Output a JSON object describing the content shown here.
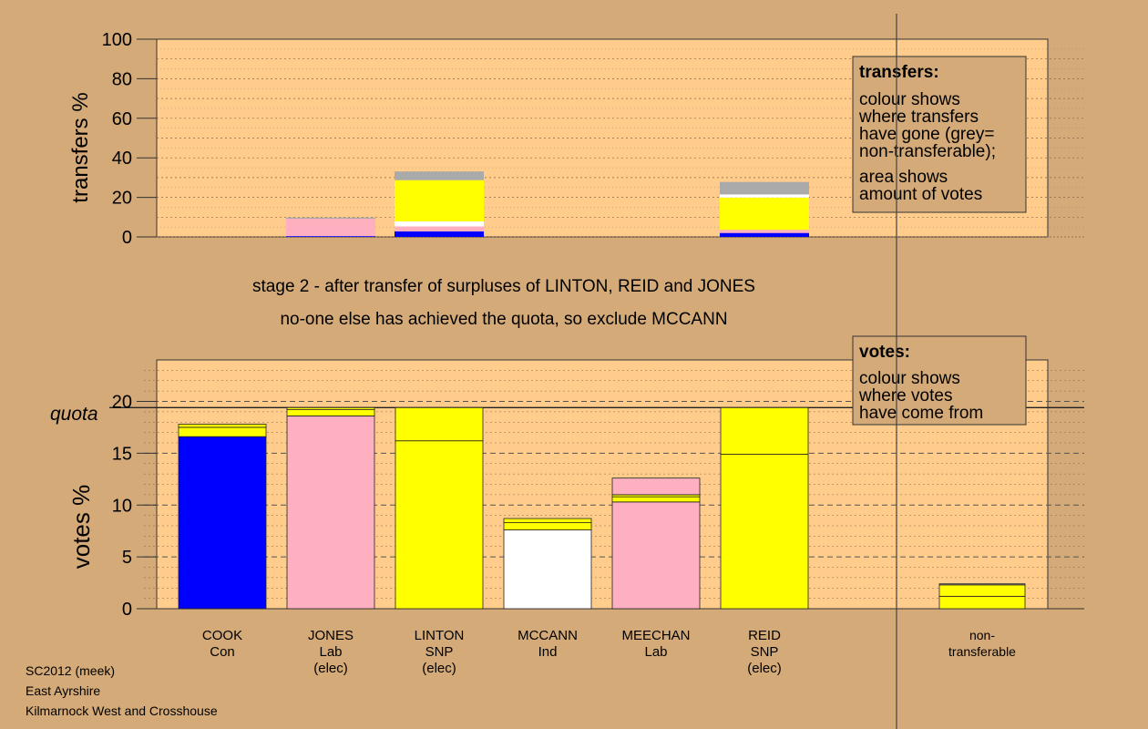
{
  "colors": {
    "background": "#d4aa78",
    "plot_bg": "#ffcc8c",
    "Con": "#0000ff",
    "Lab": "#ffb0c0",
    "SNP": "#ffff00",
    "Ind": "#ffffff",
    "grey": "#aaaaaa"
  },
  "top_panel": {
    "ylabel": "transfers %",
    "yticks": [
      "0",
      "20",
      "40",
      "60",
      "80",
      "100"
    ]
  },
  "transfers_box": {
    "title": "transfers:",
    "lines": [
      "colour shows",
      "where transfers",
      "have gone (grey=",
      "non-transferable);"
    ],
    "lines2": [
      "area shows",
      "amount of votes"
    ]
  },
  "captions": {
    "line1": "stage 2 - after transfer of surpluses of LINTON, REID and JONES",
    "line2": "no-one else has achieved the quota, so exclude MCCANN"
  },
  "bottom_panel": {
    "ylabel": "votes %",
    "quota_label": "quota",
    "yticks": [
      "0",
      "5",
      "10",
      "15",
      "20"
    ]
  },
  "votes_box": {
    "title": "votes:",
    "lines": [
      "colour shows",
      "where votes",
      "have come from"
    ]
  },
  "candidates": [
    {
      "name": "COOK",
      "party": "Con",
      "note": ""
    },
    {
      "name": "JONES",
      "party": "Lab",
      "note": "(elec)"
    },
    {
      "name": "LINTON",
      "party": "SNP",
      "note": "(elec)"
    },
    {
      "name": "MCCANN",
      "party": "Ind",
      "note": ""
    },
    {
      "name": "MEECHAN",
      "party": "Lab",
      "note": ""
    },
    {
      "name": "REID",
      "party": "SNP",
      "note": "(elec)"
    },
    {
      "name": "non-",
      "party": "transferable",
      "note": ""
    }
  ],
  "footer": {
    "line1": "SC2012 (meek)",
    "line2": "East Ayrshire",
    "line3": "Kilmarnock West and Crosshouse"
  },
  "chart_data": [
    {
      "type": "bar",
      "stacked": true,
      "ylabel": "transfers %",
      "ylim": [
        0,
        100
      ],
      "categories": [
        "COOK",
        "JONES",
        "LINTON",
        "MCCANN",
        "MEECHAN",
        "REID",
        "non-transferable"
      ],
      "bars": [
        {
          "category": "JONES",
          "segments": [
            {
              "color": "Con",
              "value": 0.4
            },
            {
              "color": "Lab",
              "value": 8.8
            },
            {
              "color": "grey",
              "value": 0.6
            }
          ]
        },
        {
          "category": "LINTON",
          "segments": [
            {
              "color": "Con",
              "value": 2.8
            },
            {
              "color": "Lab",
              "value": 2.5
            },
            {
              "color": "Ind",
              "value": 2.6
            },
            {
              "color": "SNP",
              "value": 20.8
            },
            {
              "color": "grey",
              "value": 4.4
            }
          ]
        },
        {
          "category": "REID",
          "segments": [
            {
              "color": "Con",
              "value": 2.0
            },
            {
              "color": "Lab",
              "value": 1.6
            },
            {
              "color": "SNP",
              "value": 16.3
            },
            {
              "color": "Ind",
              "value": 1.6
            },
            {
              "color": "grey",
              "value": 6.3
            }
          ]
        }
      ]
    },
    {
      "type": "bar",
      "stacked": true,
      "ylabel": "votes %",
      "ylim": [
        0,
        24
      ],
      "quota": 19.4,
      "categories": [
        "COOK",
        "JONES",
        "LINTON",
        "MCCANN",
        "MEECHAN",
        "REID",
        "non-transferable"
      ],
      "bars": [
        {
          "category": "COOK",
          "segments": [
            {
              "color": "Con",
              "value": 16.6
            },
            {
              "color": "SNP",
              "value": 0.9
            },
            {
              "color": "SNP",
              "value": 0.3
            }
          ]
        },
        {
          "category": "JONES",
          "segments": [
            {
              "color": "Lab",
              "value": 18.6
            },
            {
              "color": "SNP",
              "value": 0.6
            },
            {
              "color": "SNP",
              "value": 0.2
            }
          ]
        },
        {
          "category": "LINTON",
          "segments": [
            {
              "color": "SNP",
              "value": 16.2
            },
            {
              "color": "SNP",
              "value": 3.2
            }
          ]
        },
        {
          "category": "MCCANN",
          "segments": [
            {
              "color": "Ind",
              "value": 7.6
            },
            {
              "color": "SNP",
              "value": 0.7
            },
            {
              "color": "SNP",
              "value": 0.4
            }
          ]
        },
        {
          "category": "MEECHAN",
          "segments": [
            {
              "color": "Lab",
              "value": 10.3
            },
            {
              "color": "SNP",
              "value": 0.5
            },
            {
              "color": "SNP",
              "value": 0.2
            },
            {
              "color": "Lab",
              "value": 1.6
            }
          ]
        },
        {
          "category": "REID",
          "segments": [
            {
              "color": "SNP",
              "value": 14.9
            },
            {
              "color": "SNP",
              "value": 4.5
            }
          ]
        },
        {
          "category": "non-transferable",
          "segments": [
            {
              "color": "SNP",
              "value": 1.2
            },
            {
              "color": "SNP",
              "value": 1.1
            },
            {
              "color": "grey",
              "value": 0.1
            }
          ]
        }
      ]
    }
  ]
}
